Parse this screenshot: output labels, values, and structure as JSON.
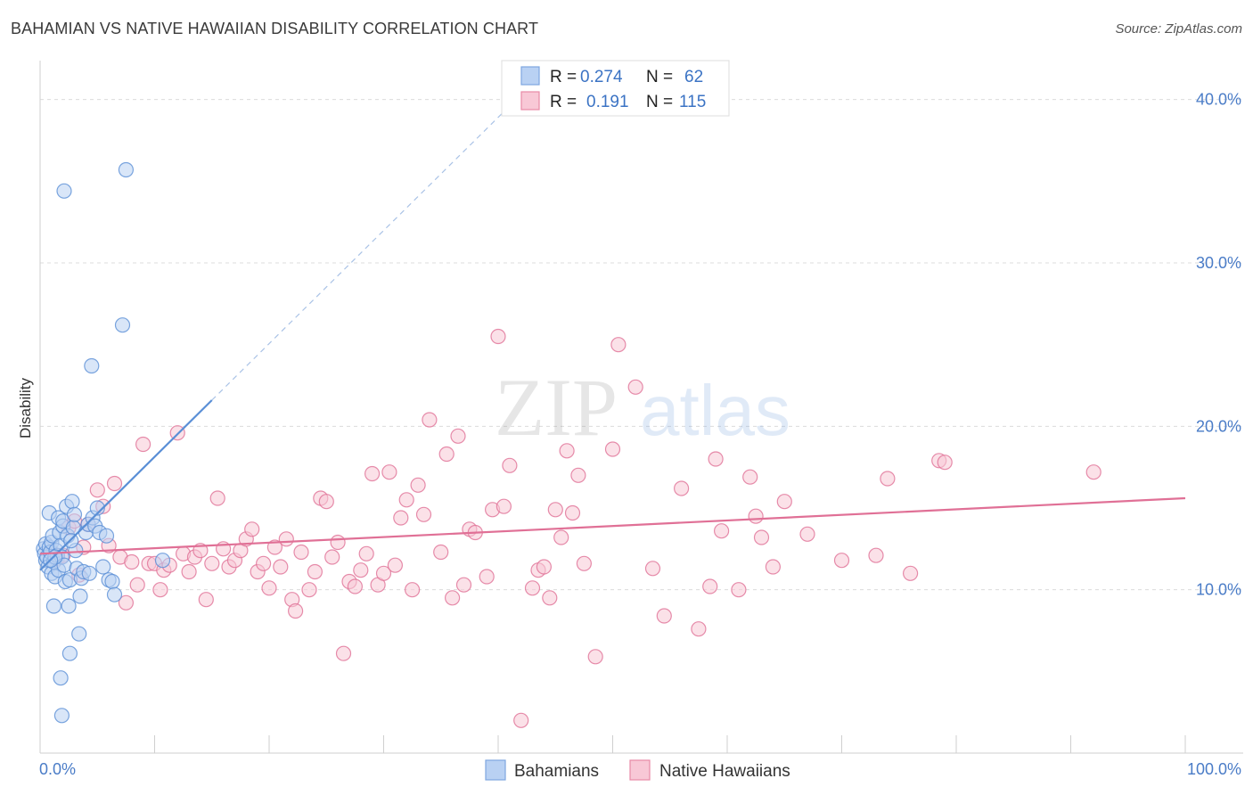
{
  "header": {
    "title": "BAHAMIAN VS NATIVE HAWAIIAN DISABILITY CORRELATION CHART",
    "source": "Source: ZipAtlas.com"
  },
  "watermark": {
    "zip": "ZIP",
    "atlas": "atlas"
  },
  "stats": [
    {
      "r_label": "R =",
      "r": "0.274",
      "n_label": "N =",
      "n": "62",
      "color": "#7ea6e0",
      "fill": "#b9d1f3"
    },
    {
      "r_label": "R =",
      "r": "0.191",
      "n_label": "N =",
      "n": "115",
      "color": "#e88aa6",
      "fill": "#f8c8d6"
    }
  ],
  "legend": [
    {
      "label": "Bahamians",
      "color": "#7ea6e0",
      "fill": "#b9d1f3"
    },
    {
      "label": "Native Hawaiians",
      "color": "#e88aa6",
      "fill": "#f8c8d6"
    }
  ],
  "chart_data": {
    "type": "scatter",
    "ylabel": "Disability",
    "xlim": [
      0,
      100
    ],
    "ylim": [
      0,
      42
    ],
    "x_tick_labels": [
      {
        "value": 0,
        "label": "0.0%"
      },
      {
        "value": 100,
        "label": "100.0%"
      }
    ],
    "y_ticks": [
      {
        "value": 10,
        "label": "10.0%"
      },
      {
        "value": 20,
        "label": "20.0%"
      },
      {
        "value": 30,
        "label": "30.0%"
      },
      {
        "value": 40,
        "label": "40.0%"
      }
    ],
    "x_minor_ticks": [
      0,
      10,
      20,
      30,
      40,
      50,
      60,
      70,
      80,
      90,
      100
    ],
    "grid": true,
    "legend_position": "bottom-center",
    "series": [
      {
        "name": "Bahamians",
        "color": "#5a8fd6",
        "fill": "#b9d1f3",
        "trend": {
          "x0": 0,
          "y0": 11.2,
          "x1": 15,
          "y1": 21.6,
          "dashed_to_x": 41,
          "dashed_to_y": 39.6
        },
        "points": [
          [
            0.3,
            12.5
          ],
          [
            0.4,
            12.2
          ],
          [
            0.5,
            11.8
          ],
          [
            0.5,
            12.8
          ],
          [
            0.6,
            12.0
          ],
          [
            0.7,
            11.4
          ],
          [
            0.8,
            12.6
          ],
          [
            0.8,
            14.7
          ],
          [
            0.9,
            12.3
          ],
          [
            1.0,
            11.0
          ],
          [
            1.0,
            12.9
          ],
          [
            1.1,
            13.3
          ],
          [
            1.2,
            11.7
          ],
          [
            1.2,
            9.0
          ],
          [
            1.3,
            10.8
          ],
          [
            1.4,
            12.4
          ],
          [
            1.5,
            12.1
          ],
          [
            1.6,
            14.4
          ],
          [
            1.6,
            11.2
          ],
          [
            1.7,
            13.5
          ],
          [
            1.8,
            12.7
          ],
          [
            1.9,
            12.0
          ],
          [
            2.0,
            13.9
          ],
          [
            2.0,
            14.2
          ],
          [
            2.1,
            11.5
          ],
          [
            2.2,
            10.5
          ],
          [
            2.3,
            15.1
          ],
          [
            2.4,
            13.3
          ],
          [
            2.5,
            9.0
          ],
          [
            2.6,
            10.6
          ],
          [
            2.8,
            15.4
          ],
          [
            2.9,
            13.8
          ],
          [
            3.0,
            14.6
          ],
          [
            3.2,
            11.3
          ],
          [
            3.4,
            7.3
          ],
          [
            3.5,
            9.6
          ],
          [
            3.6,
            10.7
          ],
          [
            3.8,
            11.1
          ],
          [
            4.0,
            13.5
          ],
          [
            4.2,
            14.0
          ],
          [
            4.3,
            11.0
          ],
          [
            4.6,
            14.4
          ],
          [
            4.8,
            13.9
          ],
          [
            5.0,
            15.0
          ],
          [
            5.2,
            13.5
          ],
          [
            5.5,
            11.4
          ],
          [
            6.0,
            10.6
          ],
          [
            6.3,
            10.5
          ],
          [
            6.5,
            9.7
          ],
          [
            7.2,
            26.2
          ],
          [
            4.5,
            23.7
          ],
          [
            2.1,
            34.4
          ],
          [
            7.5,
            35.7
          ],
          [
            1.8,
            4.6
          ],
          [
            1.9,
            2.3
          ],
          [
            2.6,
            6.1
          ],
          [
            3.1,
            12.4
          ],
          [
            1.3,
            12.0
          ],
          [
            0.9,
            11.8
          ],
          [
            2.7,
            13.0
          ],
          [
            5.8,
            13.3
          ],
          [
            10.7,
            11.8
          ]
        ]
      },
      {
        "name": "Native Hawaiians",
        "color": "#e07096",
        "fill": "#f8c8d6",
        "trend": {
          "x0": 0,
          "y0": 12.2,
          "x1": 100,
          "y1": 15.6
        },
        "points": [
          [
            1.0,
            12.3
          ],
          [
            1.5,
            11.9
          ],
          [
            2.0,
            12.1
          ],
          [
            2.5,
            13.8
          ],
          [
            3.0,
            14.2
          ],
          [
            3.4,
            10.9
          ],
          [
            3.8,
            12.6
          ],
          [
            4.2,
            14.0
          ],
          [
            5.0,
            16.1
          ],
          [
            5.5,
            15.1
          ],
          [
            6.0,
            12.7
          ],
          [
            6.5,
            16.5
          ],
          [
            7.0,
            12.0
          ],
          [
            7.5,
            9.2
          ],
          [
            8.0,
            11.7
          ],
          [
            8.5,
            10.3
          ],
          [
            9.0,
            18.9
          ],
          [
            9.5,
            11.6
          ],
          [
            10.0,
            11.6
          ],
          [
            10.5,
            10.0
          ],
          [
            10.8,
            11.2
          ],
          [
            11.3,
            11.5
          ],
          [
            12.0,
            19.6
          ],
          [
            12.5,
            12.2
          ],
          [
            13.0,
            11.1
          ],
          [
            13.5,
            12.0
          ],
          [
            14.0,
            12.4
          ],
          [
            14.5,
            9.4
          ],
          [
            15.0,
            11.6
          ],
          [
            15.5,
            15.6
          ],
          [
            16.0,
            12.5
          ],
          [
            16.5,
            11.4
          ],
          [
            17.0,
            11.8
          ],
          [
            17.5,
            12.4
          ],
          [
            18.0,
            13.1
          ],
          [
            18.5,
            13.7
          ],
          [
            19.0,
            11.1
          ],
          [
            19.5,
            11.6
          ],
          [
            20.0,
            10.1
          ],
          [
            20.5,
            12.6
          ],
          [
            21.0,
            11.4
          ],
          [
            21.5,
            13.1
          ],
          [
            22.0,
            9.4
          ],
          [
            22.3,
            8.7
          ],
          [
            22.8,
            12.3
          ],
          [
            23.5,
            10.0
          ],
          [
            24.0,
            11.1
          ],
          [
            24.5,
            15.6
          ],
          [
            25.0,
            15.4
          ],
          [
            25.5,
            12.0
          ],
          [
            26.0,
            12.9
          ],
          [
            26.5,
            6.1
          ],
          [
            27.0,
            10.5
          ],
          [
            27.5,
            10.2
          ],
          [
            28.0,
            11.2
          ],
          [
            28.5,
            12.2
          ],
          [
            29.0,
            17.1
          ],
          [
            29.5,
            10.3
          ],
          [
            30.0,
            11.0
          ],
          [
            30.5,
            17.2
          ],
          [
            31.0,
            11.5
          ],
          [
            31.5,
            14.4
          ],
          [
            32.0,
            15.5
          ],
          [
            32.5,
            10.0
          ],
          [
            33.0,
            16.4
          ],
          [
            33.5,
            14.6
          ],
          [
            34.0,
            20.4
          ],
          [
            35.0,
            12.3
          ],
          [
            35.5,
            18.3
          ],
          [
            36.0,
            9.5
          ],
          [
            36.5,
            19.4
          ],
          [
            37.0,
            10.3
          ],
          [
            37.5,
            13.7
          ],
          [
            38.0,
            13.5
          ],
          [
            39.0,
            10.8
          ],
          [
            39.5,
            14.9
          ],
          [
            40.0,
            25.5
          ],
          [
            40.5,
            15.1
          ],
          [
            41.0,
            17.6
          ],
          [
            42.0,
            2.0
          ],
          [
            43.0,
            10.1
          ],
          [
            43.5,
            11.2
          ],
          [
            44.0,
            11.4
          ],
          [
            44.5,
            9.5
          ],
          [
            45.0,
            14.9
          ],
          [
            45.5,
            13.2
          ],
          [
            46.0,
            18.5
          ],
          [
            46.5,
            14.7
          ],
          [
            47.0,
            17.0
          ],
          [
            47.5,
            11.6
          ],
          [
            48.5,
            5.9
          ],
          [
            50.0,
            18.6
          ],
          [
            50.5,
            25.0
          ],
          [
            52.0,
            22.4
          ],
          [
            53.5,
            11.3
          ],
          [
            54.5,
            8.4
          ],
          [
            56.0,
            16.2
          ],
          [
            57.5,
            7.6
          ],
          [
            58.5,
            10.2
          ],
          [
            59.0,
            18.0
          ],
          [
            59.5,
            13.6
          ],
          [
            61.0,
            10.0
          ],
          [
            62.0,
            16.9
          ],
          [
            62.5,
            14.5
          ],
          [
            63.0,
            13.2
          ],
          [
            64.0,
            11.4
          ],
          [
            65.0,
            15.4
          ],
          [
            67.0,
            13.4
          ],
          [
            70.0,
            11.8
          ],
          [
            73.0,
            12.1
          ],
          [
            74.0,
            16.8
          ],
          [
            76.0,
            11.0
          ],
          [
            78.5,
            17.9
          ],
          [
            79.0,
            17.8
          ],
          [
            92.0,
            17.2
          ]
        ]
      }
    ]
  }
}
